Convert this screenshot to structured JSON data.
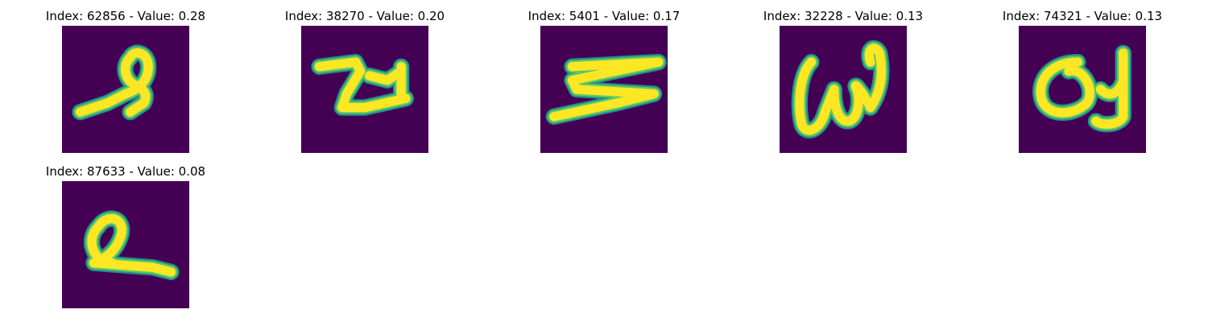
{
  "colors": {
    "background": "#440154",
    "stroke_edge": "#21918c",
    "stroke_mid": "#5ec962",
    "stroke_core": "#fde725"
  },
  "panels": [
    {
      "title": "Index: 62856 - Value: 0.28",
      "glyph": "loop-with-tail-left"
    },
    {
      "title": "Index: 38270 - Value: 0.20",
      "glyph": "z-with-hook"
    },
    {
      "title": "Index: 5401 - Value: 0.17",
      "glyph": "zigzag"
    },
    {
      "title": "Index: 32228 - Value: 0.13",
      "glyph": "w-cursive"
    },
    {
      "title": "Index: 74321 - Value: 0.13",
      "glyph": "a-with-hook"
    },
    {
      "title": "Index: 87633 - Value: 0.08",
      "glyph": "loop-with-tail-right"
    }
  ]
}
